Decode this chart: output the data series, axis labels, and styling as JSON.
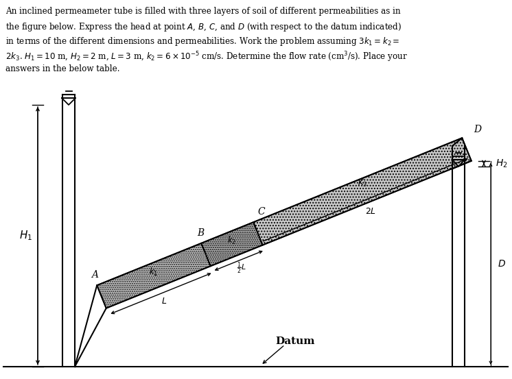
{
  "bg_color": "#ffffff",
  "text_color": "#000000",
  "text_lines": [
    "An inclined permeameter tube is filled with three layers of soil of different permeabilities as in",
    "the figure below. Express the head at point $A$, $B$, $C$, and $D$ (with respect to the datum indicated)",
    "in terms of the different dimensions and permeabilities. Work the problem assuming $3k_1 = k_2 =$",
    "$2k_3$. $H_1 = 10$ m, $H_2 = 2$ m, $L = 3$ m, $k_2 = 6\\times10^{-5}$ cm/s. Determine the flow rate (cm$^3$/s). Place your",
    "answers in the below table."
  ],
  "fig_width": 7.46,
  "fig_height": 5.53,
  "dpi": 100
}
